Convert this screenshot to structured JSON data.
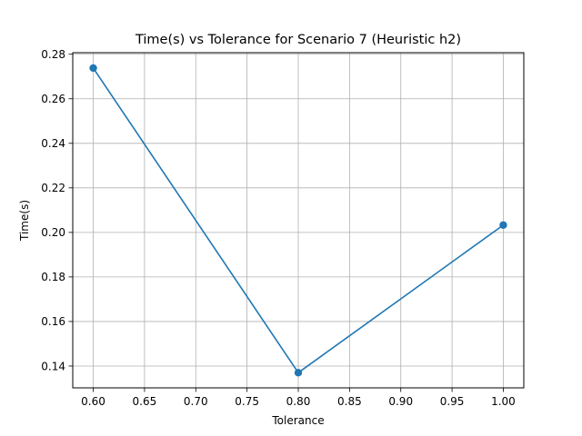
{
  "chart_data": {
    "type": "line",
    "title": "Time(s) vs Tolerance for Scenario 7 (Heuristic h2)",
    "xlabel": "Tolerance",
    "ylabel": "Time(s)",
    "x": [
      0.6,
      0.8,
      1.0
    ],
    "series": [
      {
        "values": [
          0.2738,
          0.137,
          0.2033
        ],
        "color": "#1f77b4"
      }
    ],
    "xlim": [
      0.58,
      1.02
    ],
    "ylim": [
      0.1302,
      0.2807
    ],
    "xticks": [
      0.6,
      0.65,
      0.7,
      0.75,
      0.8,
      0.85,
      0.9,
      0.95,
      1.0
    ],
    "yticks": [
      0.14,
      0.16,
      0.18,
      0.2,
      0.22,
      0.24,
      0.26,
      0.28
    ],
    "xtick_labels": [
      "0.60",
      "0.65",
      "0.70",
      "0.75",
      "0.80",
      "0.85",
      "0.90",
      "0.95",
      "1.00"
    ],
    "ytick_labels": [
      "0.14",
      "0.16",
      "0.18",
      "0.20",
      "0.22",
      "0.24",
      "0.26",
      "0.28"
    ],
    "grid": true,
    "markers": "circle",
    "gridline_color": "#b0b0b0"
  }
}
